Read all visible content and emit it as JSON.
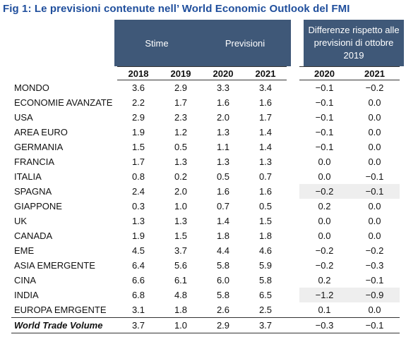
{
  "title": "Fig 1: Le previsioni contenute nell’ World Economic Outlook del FMI",
  "header": {
    "stime": "Stime",
    "previsioni": "Previsioni",
    "differenze": "Differenze rispetto alle previsioni di ottobre 2019"
  },
  "columns": [
    "2018",
    "2019",
    "2020",
    "2021",
    "2020",
    "2021"
  ],
  "rows": [
    {
      "label": "MONDO",
      "values": [
        "3.6",
        "2.9",
        "3.3",
        "3.4",
        "−0.1",
        "−0.2"
      ]
    },
    {
      "label": "ECONOMIE AVANZATE",
      "values": [
        "2.2",
        "1.7",
        "1.6",
        "1.6",
        "−0.1",
        "0.0"
      ]
    },
    {
      "label": "USA",
      "values": [
        "2.9",
        "2.3",
        "2.0",
        "1.7",
        "−0.1",
        "0.0"
      ]
    },
    {
      "label": "AREA EURO",
      "values": [
        "1.9",
        "1.2",
        "1.3",
        "1.4",
        "−0.1",
        "0.0"
      ]
    },
    {
      "label": "GERMANIA",
      "values": [
        "1.5",
        "0.5",
        "1.1",
        "1.4",
        "−0.1",
        "0.0"
      ]
    },
    {
      "label": "FRANCIA",
      "values": [
        "1.7",
        "1.3",
        "1.3",
        "1.3",
        "0.0",
        "0.0"
      ]
    },
    {
      "label": "ITALIA",
      "values": [
        "0.8",
        "0.2",
        "0.5",
        "0.7",
        "0.0",
        "−0.1"
      ]
    },
    {
      "label": "SPAGNA",
      "values": [
        "2.4",
        "2.0",
        "1.6",
        "1.6",
        "−0.2",
        "−0.1"
      ]
    },
    {
      "label": "GIAPPONE",
      "values": [
        "0.3",
        "1.0",
        "0.7",
        "0.5",
        "0.2",
        "0.0"
      ]
    },
    {
      "label": "UK",
      "values": [
        "1.3",
        "1.3",
        "1.4",
        "1.5",
        "0.0",
        "0.0"
      ]
    },
    {
      "label": "CANADA",
      "values": [
        "1.9",
        "1.5",
        "1.8",
        "1.8",
        "0.0",
        "0.0"
      ]
    },
    {
      "label": "EME",
      "values": [
        "4.5",
        "3.7",
        "4.4",
        "4.6",
        "−0.2",
        "−0.2"
      ]
    },
    {
      "label": "ASIA EMERGENTE",
      "values": [
        "6.4",
        "5.6",
        "5.8",
        "5.9",
        "−0.2",
        "−0.3"
      ]
    },
    {
      "label": "CINA",
      "values": [
        "6.6",
        "6.1",
        "6.0",
        "5.8",
        "0.2",
        "−0.1"
      ]
    },
    {
      "label": "INDIA",
      "values": [
        "6.8",
        "4.8",
        "5.8",
        "6.5",
        "−1.2",
        "−0.9"
      ]
    },
    {
      "label": "EUROPA EMRGENTE",
      "values": [
        "3.1",
        "1.8",
        "2.6",
        "2.5",
        "0.1",
        "0.0"
      ]
    },
    {
      "label": "World Trade Volume",
      "values": [
        "3.7",
        "1.0",
        "2.9",
        "3.7",
        "−0.3",
        "−0.1"
      ]
    }
  ],
  "colors": {
    "title": "#1f4e9c",
    "header_bg": "#3f5878",
    "highlight": "#eeeeee"
  }
}
